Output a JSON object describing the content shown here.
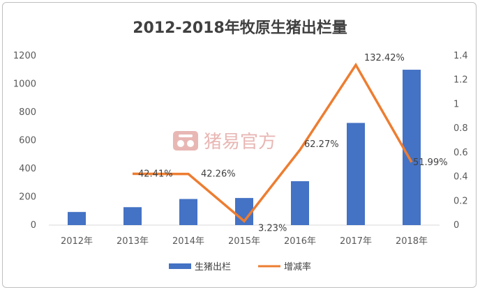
{
  "chart_data": {
    "type": "bar",
    "title": "2012-2018年牧原生猪出栏量",
    "categories": [
      "2012年",
      "2013年",
      "2014年",
      "2015年",
      "2016年",
      "2017年",
      "2018年"
    ],
    "series": [
      {
        "name": "生猪出栏",
        "type": "bar",
        "axis": "left",
        "color": "#4472C4",
        "values": [
          93,
          127,
          185,
          192,
          311,
          724,
          1101
        ]
      },
      {
        "name": "增减率",
        "type": "line",
        "axis": "right",
        "color": "#ED7D31",
        "values": [
          null,
          0.4241,
          0.4226,
          0.0323,
          0.6227,
          1.3242,
          0.5199
        ],
        "labels": [
          "",
          "42.41%",
          "42.26%",
          "3.23%",
          "62.27%",
          "132.42%",
          "51.99%"
        ]
      }
    ],
    "y_left": {
      "ylim": [
        0,
        1200
      ],
      "ticks": [
        0,
        200,
        400,
        600,
        800,
        1000,
        1200
      ]
    },
    "y_right": {
      "ylim": [
        0,
        1.4
      ],
      "ticks": [
        "0",
        "0.2",
        "0.4",
        "0.6",
        "0.8",
        "1",
        "1.2",
        "1.4"
      ]
    },
    "grid": false,
    "legend_position": "bottom"
  },
  "watermark": {
    "text": "猪易官方",
    "logo": "pig-logo"
  }
}
